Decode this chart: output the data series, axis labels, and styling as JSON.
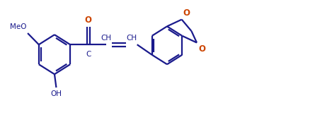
{
  "bg_color": "#ffffff",
  "line_color": "#1a1a8c",
  "text_color": "#1a1a8c",
  "o_color": "#cc4400",
  "fig_width": 4.69,
  "fig_height": 1.63,
  "dpi": 100,
  "bond_width": 1.6,
  "font_size": 7.5,
  "font_family": "Arial",
  "xlim": [
    0,
    9.5
  ],
  "ylim": [
    -1.4,
    1.6
  ]
}
